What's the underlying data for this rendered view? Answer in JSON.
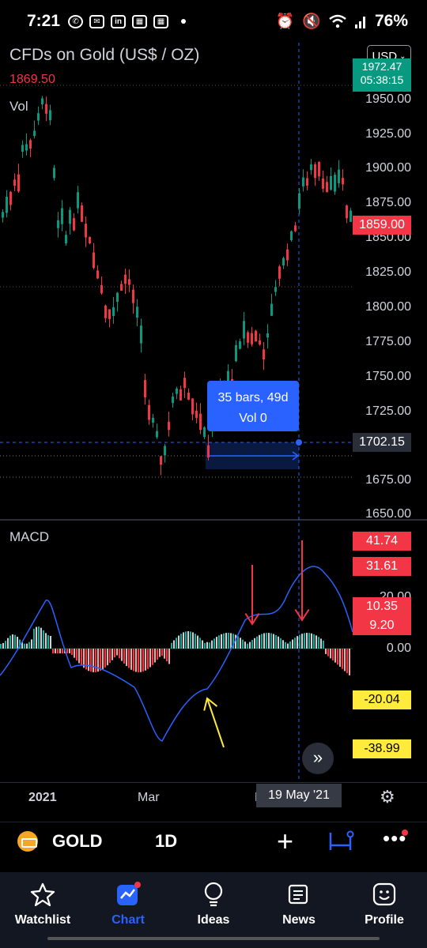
{
  "status_bar": {
    "time": "7:21",
    "battery": "76%",
    "icons": [
      "whatsapp-icon",
      "mail-icon",
      "linkedin-icon",
      "calendar-icon",
      "calendar-icon",
      "alarm-icon",
      "mute-icon",
      "wifi-icon",
      "signal-icon"
    ]
  },
  "chart": {
    "title": "CFDs on Gold (US$ / OZ)",
    "last_price": "1869.50",
    "vol_label": "Vol",
    "macd_label": "MACD",
    "currency": "USD",
    "price_tag_top": "1972.47",
    "price_tag_countdown": "05:38:15",
    "current_price": "1859.00",
    "cursor_price": "1702.15",
    "measure_bars": "35 bars, 49d",
    "measure_vol": "Vol 0",
    "price_axis": [
      "1950.00",
      "1925.00",
      "1900.00",
      "1875.00",
      "1850.00",
      "1825.00",
      "1800.00",
      "1775.00",
      "1750.00",
      "1725.00",
      "1675.00",
      "1650.00"
    ],
    "macd_axis": {
      "v1": "41.74",
      "v2": "31.61",
      "v3": "20.00",
      "v4": "10.35",
      "v5": "9.20",
      "v6": "0.00",
      "v7": "-20.04",
      "v8": "-38.99"
    },
    "time_axis": [
      "2021",
      "Mar",
      "M"
    ],
    "time_cursor": "19 May '21",
    "colors": {
      "up": "#089981",
      "down": "#f23645",
      "macd_line": "#2962ff",
      "cursor": "#2962ff",
      "annotation_red": "#f23645",
      "annotation_yellow": "#ffeb3b"
    }
  },
  "toolbar": {
    "symbol": "GOLD",
    "interval": "1D"
  },
  "nav": {
    "items": [
      {
        "label": "Watchlist",
        "icon": "star-icon"
      },
      {
        "label": "Chart",
        "icon": "chart-icon"
      },
      {
        "label": "Ideas",
        "icon": "lightbulb-icon"
      },
      {
        "label": "News",
        "icon": "news-icon"
      },
      {
        "label": "Profile",
        "icon": "profile-icon"
      }
    ]
  }
}
